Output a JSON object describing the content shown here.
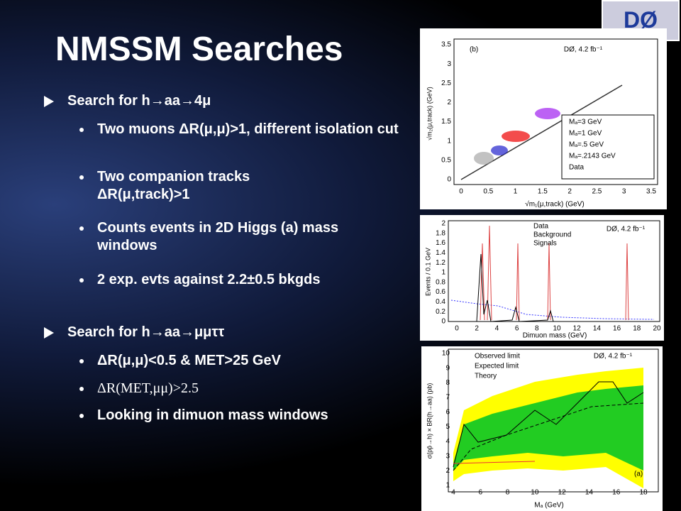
{
  "slide": {
    "title": "NMSSM Searches",
    "logo": "DØ"
  },
  "sections": [
    {
      "heading": "Search for h→aa→4μ",
      "items": [
        "Two muons ΔR(μ,μ)>1, different isolation cut",
        "Two companion tracks ΔR(μ,track)>1",
        "Counts events in 2D Higgs (a) mass windows",
        "2 exp. evts against 2.2±0.5 bkgds"
      ]
    },
    {
      "heading": "Search for h→aa→μμττ",
      "items": [
        "ΔR(μ,μ)<0.5 & MET>25 GeV",
        "ΔR(MET,μμ)>2.5",
        "Looking in dimuon mass windows"
      ]
    }
  ],
  "figures": [
    {
      "panel": "(b)",
      "note": "DØ, 4.2 fb⁻¹",
      "x_label": "√m₁(μ,track) (GeV)",
      "y_label": "√m₂(μ,track) (GeV)",
      "legend": [
        "Mₐ=3 GeV",
        "Mₐ=1 GeV",
        "Mₐ=.5 GeV",
        "Mₐ=.2143 GeV",
        "Data"
      ],
      "xticks": [
        "0",
        "0.5",
        "1",
        "1.5",
        "2",
        "2.5",
        "3",
        "3.5"
      ],
      "yticks": [
        "0",
        "0.5",
        "1",
        "1.5",
        "2",
        "2.5",
        "3",
        "3.5"
      ]
    },
    {
      "note": "DØ, 4.2 fb⁻¹",
      "x_label": "Dimuon mass (GeV)",
      "y_label": "Events / 0.1 GeV",
      "legend": [
        "Data",
        "Background",
        "Signals"
      ],
      "xticks": [
        "0",
        "2",
        "4",
        "6",
        "8",
        "10",
        "12",
        "14",
        "16",
        "18",
        "20"
      ],
      "yticks": [
        "0",
        "0.2",
        "0.4",
        "0.6",
        "0.8",
        "1",
        "1.2",
        "1.4",
        "1.6",
        "1.8",
        "2"
      ]
    },
    {
      "panel": "(a)",
      "note": "DØ, 4.2 fb⁻¹",
      "x_label": "Mₐ (GeV)",
      "y_label": "σ(pp̄→h) × BR(h→aa) (pb)",
      "legend": [
        "Observed limit",
        "Expected limit",
        "Theory"
      ],
      "xticks": [
        "4",
        "6",
        "8",
        "10",
        "12",
        "14",
        "16",
        "18"
      ],
      "yticks": [
        "1",
        "2",
        "3",
        "4",
        "5",
        "6",
        "7",
        "8",
        "9",
        "10"
      ]
    }
  ]
}
